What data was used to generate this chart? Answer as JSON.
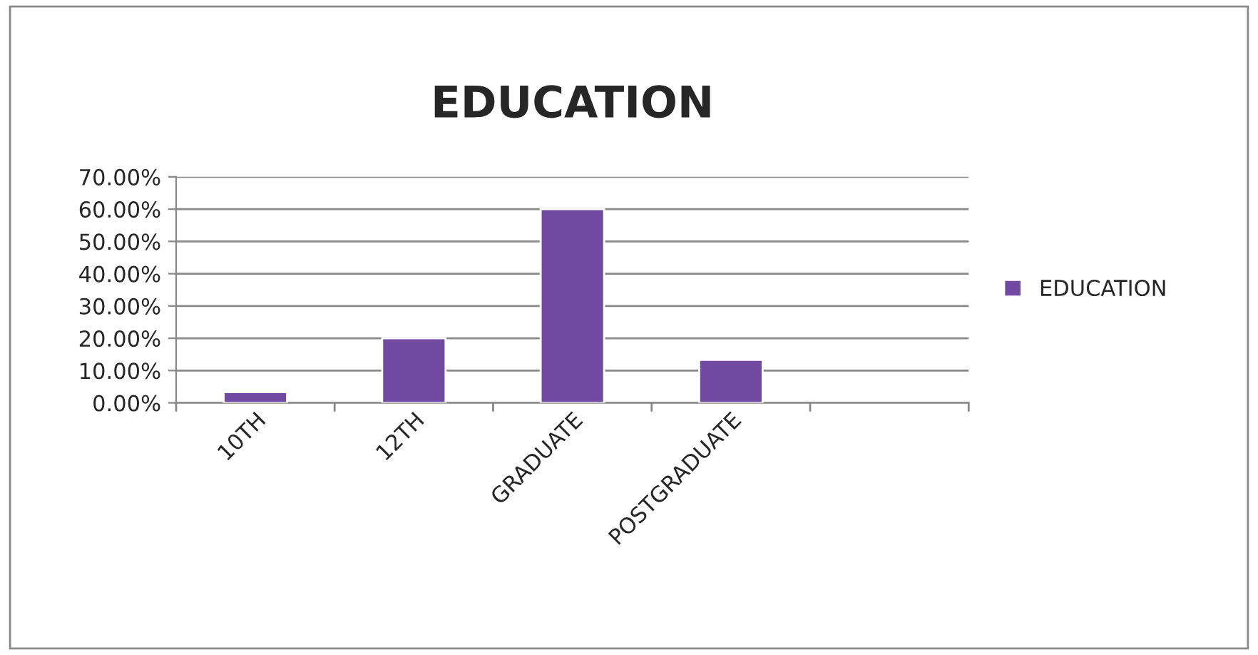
{
  "chart_data": {
    "type": "bar",
    "title": "EDUCATION",
    "categories": [
      "10TH",
      "12TH",
      "GRADUATE",
      "POSTGRADUATE",
      null
    ],
    "series": [
      {
        "name": "EDUCATION",
        "color": "#7149a0",
        "values": [
          3.3,
          20,
          60,
          13.3,
          null
        ]
      }
    ],
    "ylim": [
      0,
      70
    ],
    "yticks": [
      {
        "value": 0,
        "label": "0.00%"
      },
      {
        "value": 10,
        "label": "10.00%"
      },
      {
        "value": 20,
        "label": "20.00%"
      },
      {
        "value": 30,
        "label": "30.00%"
      },
      {
        "value": 40,
        "label": "40.00%"
      },
      {
        "value": 50,
        "label": "50.00%"
      },
      {
        "value": 60,
        "label": "60.00%"
      },
      {
        "value": 70,
        "label": "70.00%"
      }
    ],
    "grid": "y",
    "legend": "right"
  }
}
